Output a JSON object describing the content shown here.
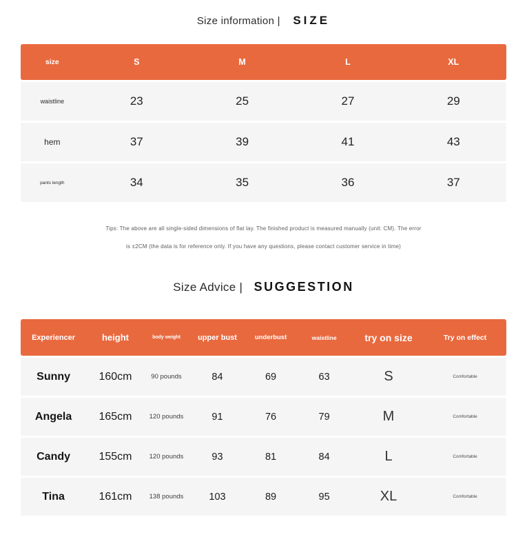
{
  "colors": {
    "accent_orange": "#e9693f",
    "row_background": "#f5f5f5",
    "header_text": "#ffffff",
    "body_text": "#1f1f1f",
    "tips_text": "#5d5d5d"
  },
  "section1": {
    "title_left": "Size information |",
    "title_right": "SIZE"
  },
  "size_table": {
    "columns": [
      "size",
      "S",
      "M",
      "L",
      "XL"
    ],
    "rows": [
      {
        "label": "waistline",
        "values": [
          "23",
          "25",
          "27",
          "29"
        ]
      },
      {
        "label": "hem",
        "values": [
          "37",
          "39",
          "41",
          "43"
        ]
      },
      {
        "label": "pants length",
        "values": [
          "34",
          "35",
          "36",
          "37"
        ]
      }
    ]
  },
  "tips": {
    "line1": "Tips: The above are all single-sided dimensions of flat lay. The finished product is measured manually (unit: CM). The error",
    "line2": "is ±2CM (the data is for reference only. If you have any questions, please contact customer service in time)"
  },
  "section2": {
    "title_left": "Size Advice |",
    "title_right": "SUGGESTION"
  },
  "suggestion_table": {
    "columns": [
      "Experiencer",
      "height",
      "body weight",
      "upper bust",
      "underbust",
      "waistline",
      "try on size",
      "Try on effect"
    ],
    "rows": [
      {
        "name": "Sunny",
        "height": "160cm",
        "weight": "90 pounds",
        "upper_bust": "84",
        "underbust": "69",
        "waistline": "63",
        "try_on_size": "S",
        "effect": "Comfortable"
      },
      {
        "name": "Angela",
        "height": "165cm",
        "weight": "120 pounds",
        "upper_bust": "91",
        "underbust": "76",
        "waistline": "79",
        "try_on_size": "M",
        "effect": "Comfortable"
      },
      {
        "name": "Candy",
        "height": "155cm",
        "weight": "120 pounds",
        "upper_bust": "93",
        "underbust": "81",
        "waistline": "84",
        "try_on_size": "L",
        "effect": "Comfortable"
      },
      {
        "name": "Tina",
        "height": "161cm",
        "weight": "138 pounds",
        "upper_bust": "103",
        "underbust": "89",
        "waistline": "95",
        "try_on_size": "XL",
        "effect": "Comfortable"
      }
    ]
  }
}
